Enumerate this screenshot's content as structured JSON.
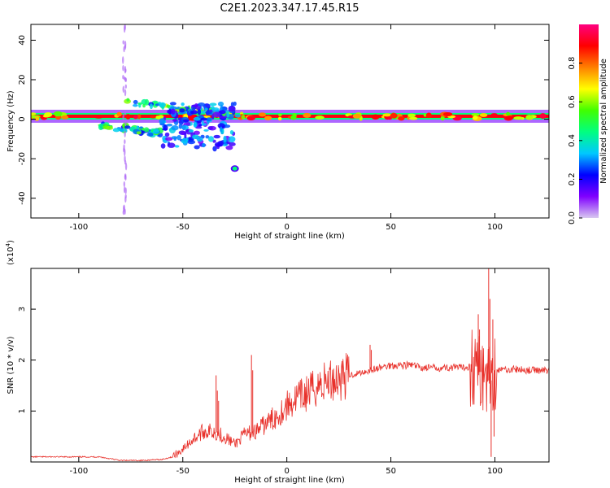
{
  "figure": {
    "title": "C2E1.2023.347.17.45.R15"
  },
  "colors": {
    "snr_line": "#e8302a",
    "colormap_stops": [
      "#d8c8f0",
      "#8000ff",
      "#0000ff",
      "#00c8ff",
      "#00ff80",
      "#40ff00",
      "#ffff00",
      "#ff8000",
      "#ff0000",
      "#ff0080"
    ]
  },
  "chart_data": [
    {
      "type": "heatmap",
      "title": "",
      "xlabel": "Height of straight line (km)",
      "ylabel": "Frequency (Hz)",
      "xlim": [
        -123,
        126
      ],
      "ylim": [
        -50,
        48
      ],
      "x_ticks": [
        -100,
        -50,
        0,
        50,
        100
      ],
      "x_tick_labels": [
        "-100",
        "-50",
        "0",
        "50",
        "100"
      ],
      "y_ticks": [
        -40,
        -20,
        0,
        20,
        40
      ],
      "y_tick_labels": [
        "-40",
        "-20",
        "0",
        "20",
        "40"
      ],
      "colorbar": {
        "label": "Normalized spectral amplitude",
        "range": [
          0,
          1
        ],
        "ticks": [
          0.0,
          0.2,
          0.4,
          0.6,
          0.8
        ],
        "tick_labels": [
          "0.0",
          "0.2",
          "0.4",
          "0.6",
          "0.8"
        ]
      },
      "features": [
        {
          "name": "main band",
          "x": [
            -123,
            126
          ],
          "f": 1.5,
          "amplitude": 0.9
        },
        {
          "name": "upper branch",
          "x": [
            -78,
            -20
          ],
          "f": [
            9,
            1
          ],
          "amplitude": 0.55
        },
        {
          "name": "lower branch",
          "x": [
            -90,
            -60
          ],
          "f": [
            -3,
            -7
          ],
          "amplitude": 0.5
        },
        {
          "name": "scattered cloud",
          "x": [
            -60,
            -25
          ],
          "f": [
            -15,
            8
          ],
          "amplitude": 0.3
        },
        {
          "name": "isolated spot",
          "x": -25,
          "f": -25,
          "amplitude": 0.45
        },
        {
          "name": "vertical streak",
          "x": -78,
          "f": [
            -48,
            48
          ],
          "amplitude": 0.08
        }
      ],
      "grid": false
    },
    {
      "type": "line",
      "title": "",
      "xlabel": "Height of straight line (km)",
      "ylabel": "SNR (10 * v/v)",
      "y_multiplier_label": "(x10",
      "y_multiplier_exponent": "4",
      "y_multiplier_close": ")",
      "xlim": [
        -123,
        126
      ],
      "ylim": [
        0,
        3.8
      ],
      "x_ticks": [
        -100,
        -50,
        0,
        50,
        100
      ],
      "x_tick_labels": [
        "-100",
        "-50",
        "0",
        "50",
        "100"
      ],
      "y_ticks": [
        1,
        2,
        3
      ],
      "y_tick_labels": [
        "1",
        "2",
        "3"
      ],
      "series": [
        {
          "x": [
            -123,
            -110,
            -100,
            -90,
            -80,
            -70,
            -60,
            -55,
            -50,
            -45,
            -40,
            -35,
            -30,
            -25,
            -20,
            -15,
            -10,
            -5,
            0,
            5,
            10,
            15,
            20,
            25,
            30,
            35,
            40,
            45,
            50,
            55,
            60,
            65,
            70,
            75,
            80,
            85,
            90,
            93,
            95,
            97,
            99,
            101,
            105,
            110,
            115,
            120,
            126
          ],
          "values": [
            0.1,
            0.1,
            0.1,
            0.1,
            0.03,
            0.03,
            0.05,
            0.1,
            0.25,
            0.45,
            0.6,
            0.6,
            0.5,
            0.35,
            0.55,
            0.6,
            0.75,
            0.9,
            1.1,
            1.25,
            1.35,
            1.5,
            1.6,
            1.65,
            1.7,
            1.75,
            1.8,
            1.85,
            1.9,
            1.9,
            1.9,
            1.85,
            1.85,
            1.85,
            1.85,
            1.85,
            1.9,
            1.7,
            1.8,
            1.6,
            1.8,
            1.8,
            1.82,
            1.82,
            1.8,
            1.8,
            1.8
          ],
          "spikes": [
            {
              "x": -34,
              "values": [
                1.7,
                1.4,
                1.2
              ]
            },
            {
              "x": -17,
              "values": [
                2.1,
                1.8
              ]
            },
            {
              "x": 40,
              "values": [
                2.3,
                2.2
              ]
            },
            {
              "x": 92,
              "values": [
                2.9,
                2.6,
                2.2
              ]
            },
            {
              "x": 97,
              "values": [
                3.8,
                3.2,
                0.1
              ]
            },
            {
              "x": 99,
              "values": [
                2.8,
                0.5
              ]
            }
          ]
        }
      ],
      "grid": false
    }
  ]
}
